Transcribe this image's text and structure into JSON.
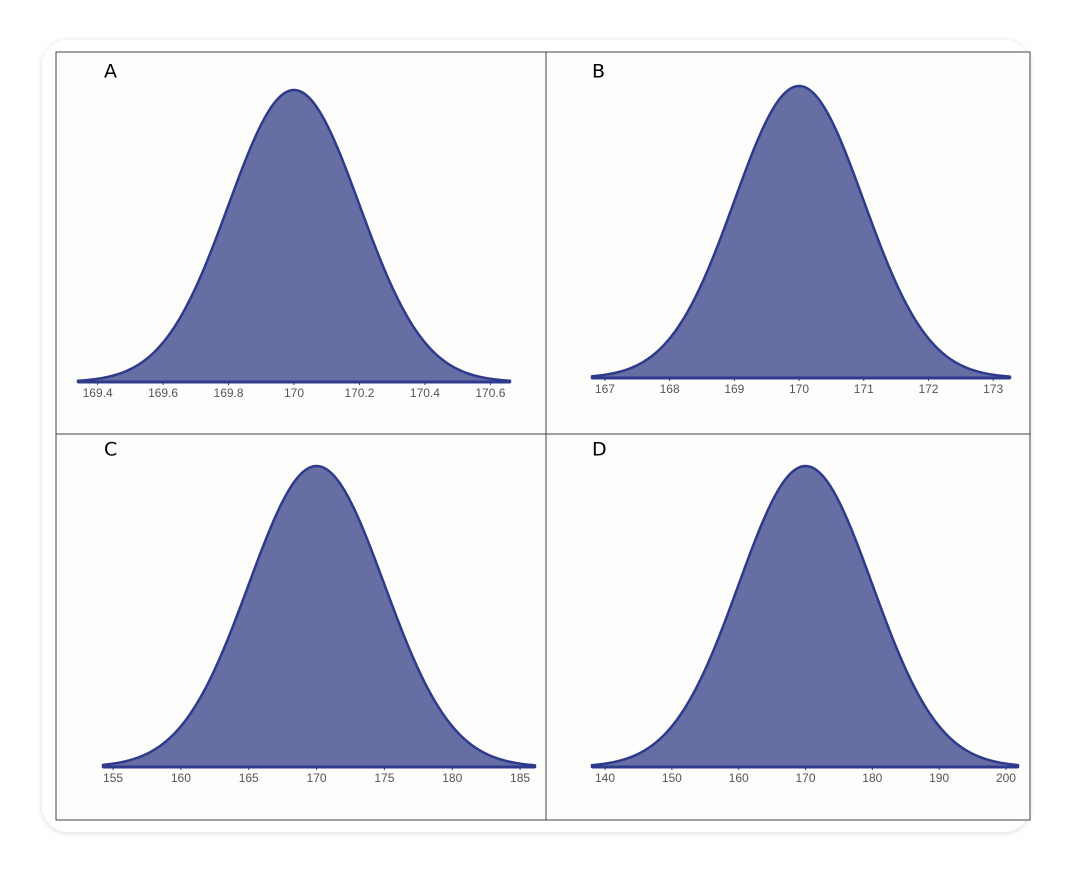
{
  "chart_data": [
    {
      "type": "normal",
      "title": "A",
      "mean": 170,
      "sd": 0.2,
      "color": "#666ea3",
      "line_color": "#2e3a8c",
      "xlim": [
        169.34,
        170.66
      ],
      "xticks": [
        169.4,
        169.6,
        169.8,
        170,
        170.2,
        170.4,
        170.6
      ]
    },
    {
      "type": "normal",
      "title": "B",
      "mean": 170,
      "sd": 1,
      "color": "#666ea3",
      "line_color": "#2e3a8c",
      "xlim": [
        166.8,
        173.26
      ],
      "xticks": [
        167,
        168,
        169,
        170,
        171,
        172,
        173
      ]
    },
    {
      "type": "normal",
      "title": "C",
      "mean": 170,
      "sd": 5,
      "color": "#666ea3",
      "line_color": "#2e3a8c",
      "xlim": [
        154.26,
        186.1
      ],
      "xticks": [
        155,
        160,
        165,
        170,
        175,
        180,
        185
      ]
    },
    {
      "type": "normal",
      "title": "D",
      "mean": 170,
      "sd": 10,
      "color": "#666ea3",
      "line_color": "#2e3a8c",
      "xlim": [
        138.05,
        201.8
      ],
      "xticks": [
        140,
        150,
        160,
        170,
        180,
        190,
        200
      ]
    }
  ]
}
